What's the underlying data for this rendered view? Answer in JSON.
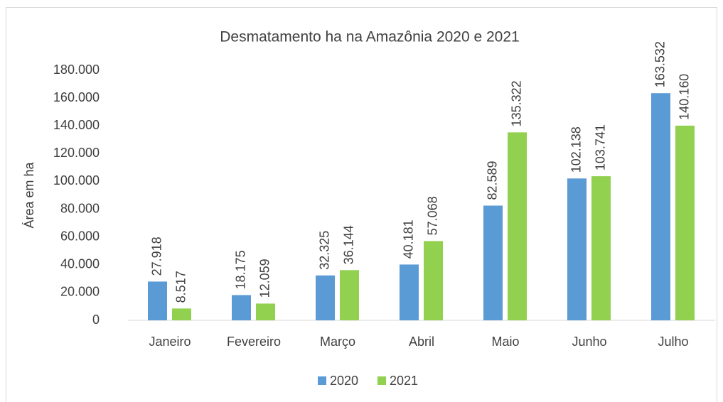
{
  "chart_data": {
    "type": "bar",
    "title": "Desmatamento ha na Amazônia 2020 e 2021",
    "y_label": "Área em ha",
    "categories": [
      "Janeiro",
      "Fevereiro",
      "Março",
      "Abril",
      "Maio",
      "Junho",
      "Julho"
    ],
    "series": [
      {
        "name": "2020",
        "color": "#5b9bd5",
        "values": [
          27918,
          18175,
          32325,
          40181,
          82589,
          102138,
          163532
        ],
        "value_labels": [
          "27.918",
          "18.175",
          "32.325",
          "40.181",
          "82.589",
          "102.138",
          "163.532"
        ]
      },
      {
        "name": "2021",
        "color": "#92d050",
        "values": [
          8517,
          12059,
          36144,
          57068,
          135322,
          103741,
          140160
        ],
        "value_labels": [
          "8.517",
          "12.059",
          "36.144",
          "57.068",
          "135.322",
          "103.741",
          "140.160"
        ]
      }
    ],
    "ylim": [
      0,
      180000
    ],
    "yticks": [
      0,
      {
        "value": 20000,
        "label": "20.000"
      },
      {
        "value": 40000,
        "label": "40.000"
      },
      {
        "value": 60000,
        "label": "60.000"
      },
      {
        "value": 80000,
        "label": "80.000"
      },
      {
        "value": 100000,
        "label": "100.000"
      },
      {
        "value": 120000,
        "label": "120.000"
      },
      {
        "value": 140000,
        "label": "140.000"
      },
      {
        "value": 160000,
        "label": "160.000"
      },
      {
        "value": 180000,
        "label": "180.000"
      }
    ],
    "grid": false,
    "legend": "bottom"
  }
}
